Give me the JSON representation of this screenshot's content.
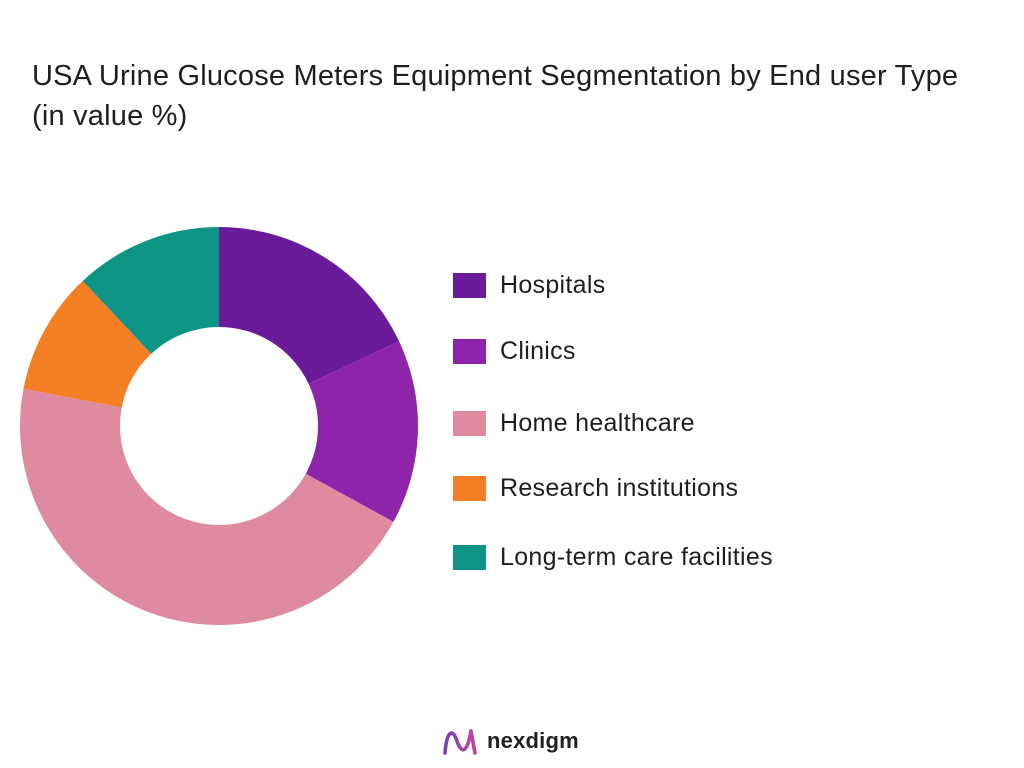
{
  "colors": {
    "hospitals": "#6a1b9a",
    "clinics": "#8e24aa",
    "home_healthcare": "#de8aa0",
    "research_institutions": "#f57f25",
    "long_term_care": "#0e9484"
  },
  "brand": {
    "name": "nexdigm",
    "icon": "wave-logo-icon"
  },
  "chart_data": {
    "type": "pie",
    "variant": "donut",
    "title": "USA Urine Glucose Meters Equipment Segmentation by End user Type (in value %)",
    "legend_placement": "right",
    "categories": [
      "Hospitals",
      "Clinics",
      "Home healthcare",
      "Research institutions",
      "Long-term care facilities"
    ],
    "values": [
      18,
      15,
      45,
      10,
      12
    ],
    "colors": [
      "#6a1b9a",
      "#8e24aa",
      "#de8aa0",
      "#f57f25",
      "#0e9484"
    ]
  }
}
